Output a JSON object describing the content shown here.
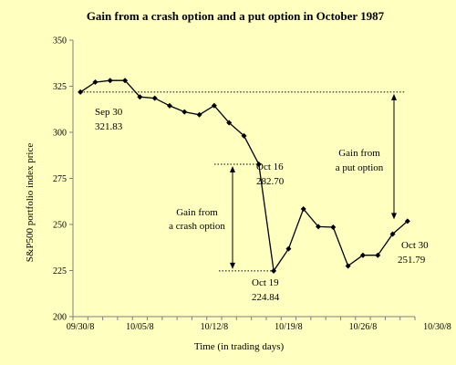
{
  "chart_data": {
    "type": "line",
    "title": "Gain from a crash option and a put option in October 1987",
    "xlabel": "Time (in trading days)",
    "ylabel": "S&P500 portfolio index price",
    "ylim": [
      200,
      350
    ],
    "yticks": [
      200,
      225,
      250,
      275,
      300,
      325,
      350
    ],
    "xtick_labels": [
      {
        "index": 0,
        "label": "09/30/8"
      },
      {
        "index": 4,
        "label": "10/05/8"
      },
      {
        "index": 9,
        "label": "10/12/8"
      },
      {
        "index": 14,
        "label": "10/19/8"
      },
      {
        "index": 19,
        "label": "10/26/8"
      },
      {
        "index": 24,
        "label": "10/30/8"
      }
    ],
    "series": [
      {
        "values": [
          321.83,
          327.2,
          328.1,
          328.1,
          319.2,
          318.5,
          314.4,
          311.1,
          309.5,
          314.5,
          305.2,
          298.1,
          282.7,
          224.84,
          236.8,
          258.4,
          248.8,
          248.5,
          227.5,
          233.3,
          233.3,
          244.8,
          251.79
        ],
        "color": "#000000"
      }
    ],
    "reference_lines": {
      "sep30_level": 321.83,
      "oct16_level": 282.7,
      "oct19_level": 224.84,
      "oct30_level": 251.79
    },
    "annotations": [
      {
        "text": "Sep 30",
        "line2": "321.83"
      },
      {
        "text": "Oct 16",
        "line2": "282.70"
      },
      {
        "text": "Oct 19",
        "line2": "224.84"
      },
      {
        "text": "Oct 30",
        "line2": "251.79"
      },
      {
        "text": "Gain from",
        "line2": "a crash option"
      },
      {
        "text": "Gain from",
        "line2": "a put option"
      }
    ]
  }
}
